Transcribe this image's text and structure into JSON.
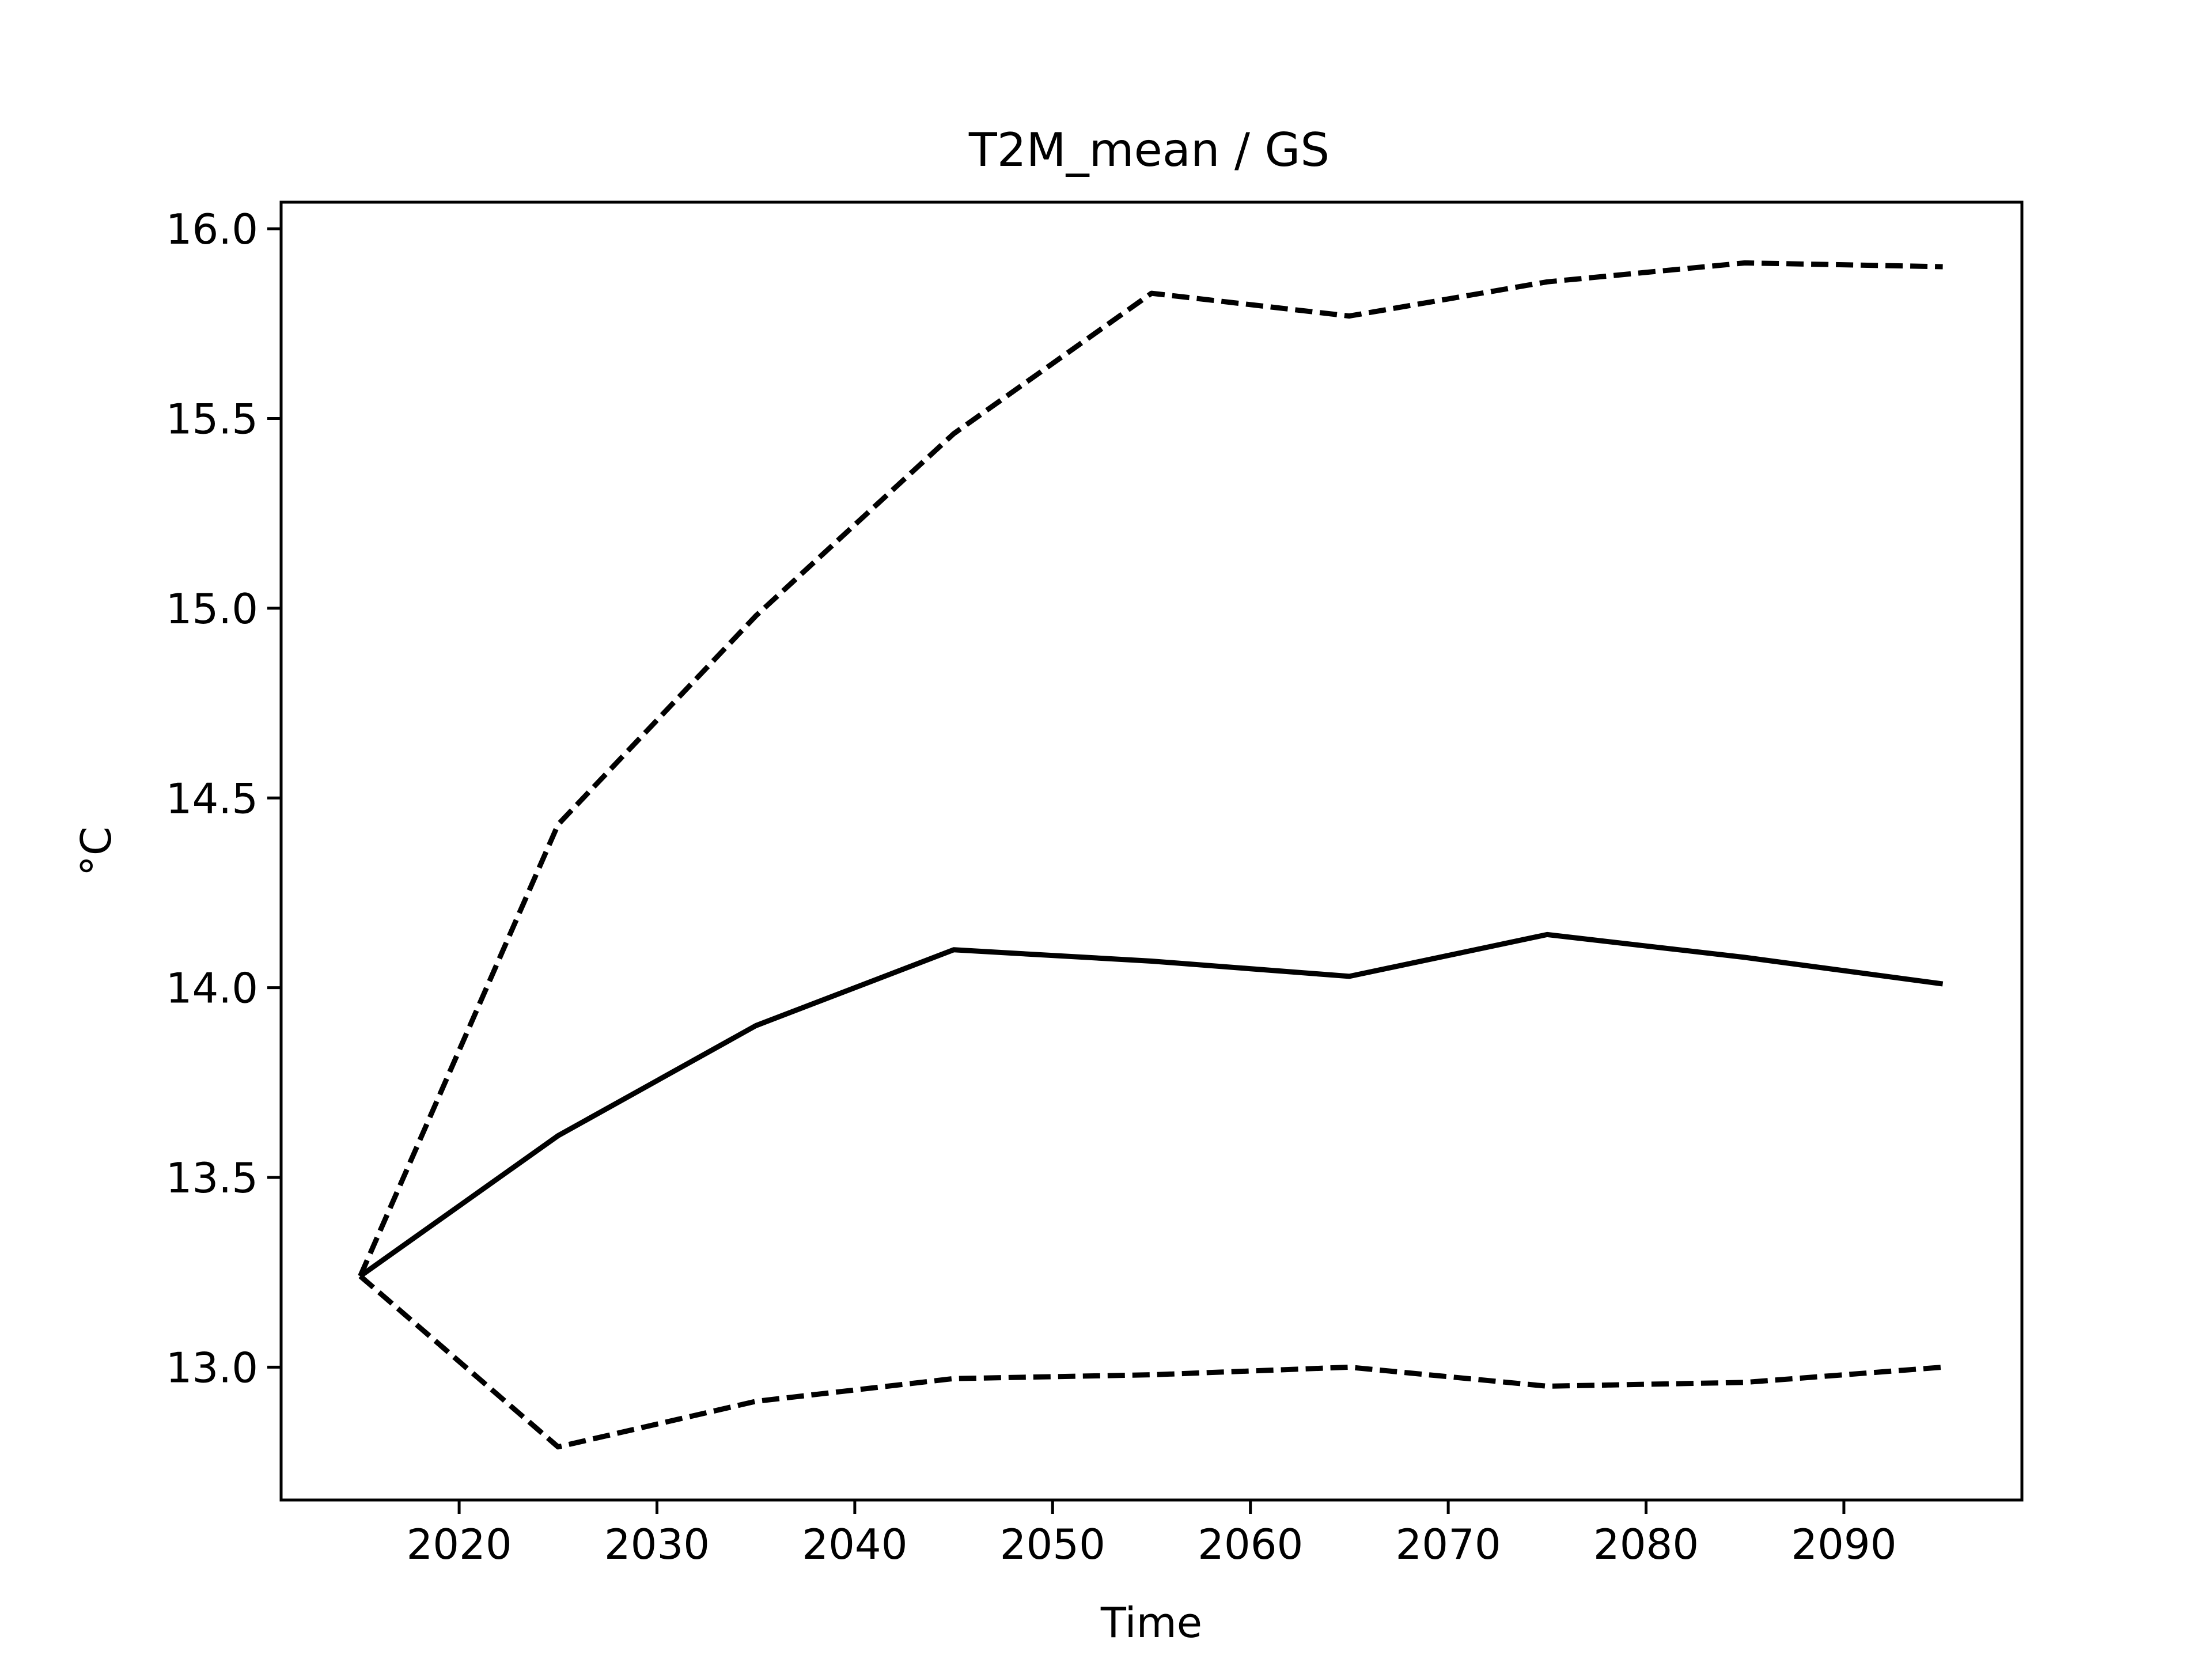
{
  "chart_data": {
    "type": "line",
    "title": "T2M_mean / GS",
    "xlabel": "Time",
    "ylabel": "°C",
    "xlim": [
      2011,
      2099
    ],
    "ylim": [
      12.65,
      16.07
    ],
    "xticks": [
      2020,
      2030,
      2040,
      2050,
      2060,
      2070,
      2080,
      2090
    ],
    "xtick_labels": [
      "2020",
      "2030",
      "2040",
      "2050",
      "2060",
      "2070",
      "2080",
      "2090"
    ],
    "yticks": [
      13.0,
      13.5,
      14.0,
      14.5,
      15.0,
      15.5,
      16.0
    ],
    "ytick_labels": [
      "13.0",
      "13.5",
      "14.0",
      "14.5",
      "15.0",
      "15.5",
      "16.0"
    ],
    "grid": false,
    "legend": false,
    "series": [
      {
        "style": "solid",
        "color": "#000000",
        "x": [
          2015,
          2025,
          2035,
          2045,
          2055,
          2065,
          2075,
          2085,
          2095
        ],
        "y": [
          13.24,
          13.61,
          13.9,
          14.1,
          14.07,
          14.03,
          14.14,
          14.08,
          14.01
        ]
      },
      {
        "style": "dashed",
        "color": "#000000",
        "x": [
          2015,
          2025,
          2035,
          2045,
          2055,
          2065,
          2075,
          2085,
          2095
        ],
        "y": [
          13.24,
          14.43,
          14.98,
          15.46,
          15.83,
          15.77,
          15.86,
          15.91,
          15.9
        ]
      },
      {
        "style": "dashed",
        "color": "#000000",
        "x": [
          2015,
          2025,
          2035,
          2045,
          2055,
          2065,
          2075,
          2085,
          2095
        ],
        "y": [
          13.24,
          12.79,
          12.91,
          12.97,
          12.98,
          13.0,
          12.95,
          12.96,
          13.0
        ]
      }
    ]
  }
}
